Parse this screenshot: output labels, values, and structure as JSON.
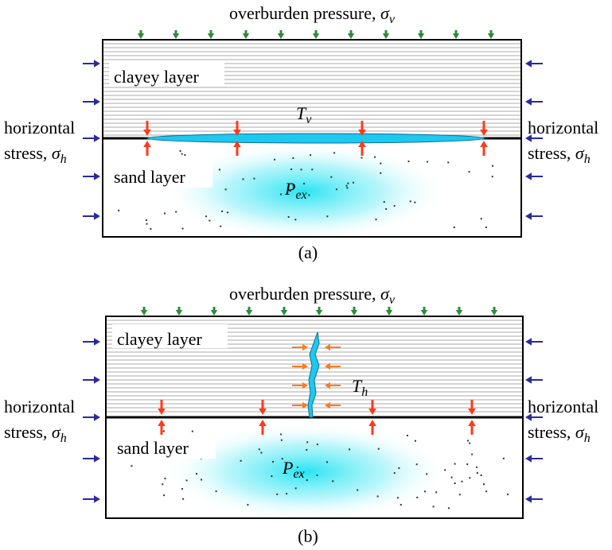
{
  "panels": [
    {
      "top_label": {
        "text": "overburden pressure, ",
        "symbol": "σ",
        "sub": "v"
      },
      "clay_label": "clayey layer",
      "sand_label": "sand layer",
      "left_stress": {
        "line1": "horizontal",
        "line2": "stress, ",
        "symbol": "σ",
        "sub": "h"
      },
      "right_stress": {
        "line1": "horizontal",
        "line2": "stress, ",
        "symbol": "σ",
        "sub": "h"
      },
      "tension": {
        "symbol": "T",
        "sub": "v"
      },
      "pressure": {
        "symbol": "P",
        "sub": "ex"
      },
      "caption": "(a)"
    },
    {
      "top_label": {
        "text": "overburden pressure, ",
        "symbol": "σ",
        "sub": "v"
      },
      "clay_label": "clayey layer",
      "sand_label": "sand layer",
      "left_stress": {
        "line1": "horizontal",
        "line2": "stress, ",
        "symbol": "σ",
        "sub": "h"
      },
      "right_stress": {
        "line1": "horizontal",
        "line2": "stress, ",
        "symbol": "σ",
        "sub": "h"
      },
      "tension": {
        "symbol": "T",
        "sub": "h"
      },
      "pressure": {
        "symbol": "P",
        "sub": "ex"
      },
      "caption": "(b)"
    }
  ]
}
